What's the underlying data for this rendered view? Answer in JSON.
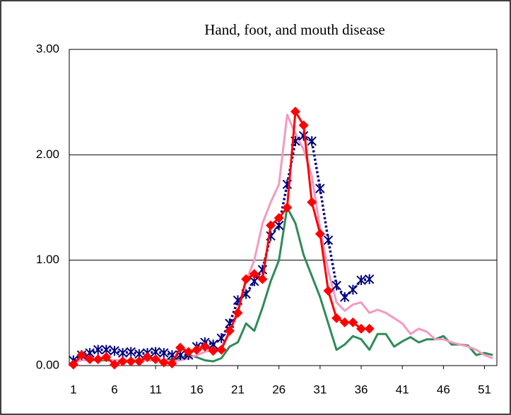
{
  "chart_data": {
    "type": "line",
    "title": "Hand, foot, and mouth disease",
    "x": [
      1,
      2,
      3,
      4,
      5,
      6,
      7,
      8,
      9,
      10,
      11,
      12,
      13,
      14,
      15,
      16,
      17,
      18,
      19,
      20,
      21,
      22,
      23,
      24,
      25,
      26,
      27,
      28,
      29,
      30,
      31,
      32,
      33,
      34,
      35,
      36,
      37,
      38,
      39,
      40,
      41,
      42,
      43,
      44,
      45,
      46,
      47,
      48,
      49,
      50,
      51,
      52
    ],
    "xlim": [
      0.5,
      52.5
    ],
    "xticks": [
      1,
      6,
      11,
      16,
      21,
      26,
      31,
      36,
      41,
      46,
      51
    ],
    "ylim": [
      0,
      3
    ],
    "yticks": [
      {
        "value": 0,
        "label": "0.00"
      },
      {
        "value": 1,
        "label": "1.00"
      },
      {
        "value": 2,
        "label": "2.00"
      },
      {
        "value": 3,
        "label": "3.00"
      }
    ],
    "grid": true,
    "series": [
      {
        "color": "#2e8b57",
        "marker": "none",
        "dash": "solid",
        "values": [
          0.05,
          0.05,
          0.05,
          0.05,
          0.05,
          0.05,
          0.05,
          0.05,
          0.05,
          0.05,
          0.05,
          0.05,
          0.06,
          0.07,
          0.1,
          0.08,
          0.05,
          0.04,
          0.07,
          0.18,
          0.22,
          0.4,
          0.33,
          0.55,
          0.8,
          1.0,
          1.5,
          1.35,
          1.05,
          0.85,
          0.65,
          0.4,
          0.15,
          0.2,
          0.28,
          0.25,
          0.15,
          0.3,
          0.3,
          0.18,
          0.23,
          0.27,
          0.22,
          0.25,
          0.25,
          0.28,
          0.2,
          0.2,
          0.19,
          0.1,
          0.12,
          0.1
        ]
      },
      {
        "color": "#f49ac1",
        "marker": "none",
        "dash": "solid",
        "values": [
          0.03,
          0.05,
          0.05,
          0.06,
          0.06,
          0.05,
          0.05,
          0.05,
          0.04,
          0.05,
          0.06,
          0.05,
          0.04,
          0.05,
          0.07,
          0.1,
          0.13,
          0.15,
          0.18,
          0.3,
          0.55,
          0.8,
          1.0,
          1.35,
          1.55,
          1.72,
          2.38,
          2.2,
          2.05,
          1.8,
          1.3,
          0.9,
          0.6,
          0.52,
          0.58,
          0.6,
          0.5,
          0.53,
          0.5,
          0.45,
          0.4,
          0.3,
          0.35,
          0.32,
          0.25,
          0.25,
          0.22,
          0.2,
          0.18,
          0.15,
          0.1,
          0.07
        ]
      },
      {
        "color": "#000080",
        "marker": "asterisk",
        "dash": "dotted",
        "values": [
          0.05,
          0.1,
          0.12,
          0.15,
          0.15,
          0.14,
          0.12,
          0.13,
          0.11,
          0.12,
          0.13,
          0.12,
          0.1,
          0.1,
          0.1,
          0.18,
          0.22,
          0.2,
          0.26,
          0.4,
          0.62,
          0.68,
          0.8,
          0.91,
          1.23,
          1.33,
          1.72,
          2.13,
          2.18,
          2.13,
          1.68,
          1.19,
          0.76,
          0.65,
          0.72,
          0.81,
          0.82,
          null,
          null,
          null,
          null,
          null,
          null,
          null,
          null,
          null,
          null,
          null,
          null,
          null,
          null,
          null
        ]
      },
      {
        "color": "#ff0000",
        "marker": "diamond",
        "dash": "solid",
        "values": [
          0.01,
          0.1,
          0.06,
          0.06,
          0.08,
          0.01,
          0.04,
          0.04,
          0.04,
          0.08,
          0.06,
          0.03,
          0.02,
          0.17,
          0.13,
          0.15,
          0.18,
          0.14,
          0.15,
          0.33,
          0.5,
          0.82,
          0.87,
          0.82,
          1.33,
          1.4,
          1.5,
          2.41,
          2.28,
          1.55,
          1.25,
          0.71,
          0.45,
          0.41,
          0.41,
          0.35,
          0.35,
          null,
          null,
          null,
          null,
          null,
          null,
          null,
          null,
          null,
          null,
          null,
          null,
          null,
          null,
          null
        ]
      }
    ]
  }
}
